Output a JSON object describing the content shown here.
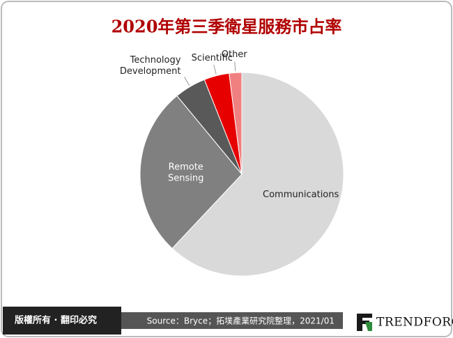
{
  "chart_data": {
    "type": "pie",
    "title": "2020年第三季衛星服務市占率",
    "categories": [
      "Communications",
      "Remote Sensing",
      "Technology Development",
      "Scientific",
      "Other"
    ],
    "values": [
      62,
      27,
      5,
      4,
      2
    ],
    "colors": [
      "#d9d9d9",
      "#808080",
      "#595959",
      "#e60000",
      "#f08080"
    ]
  },
  "footer": {
    "rights": "版權所有 · 翻印必究",
    "source": "Source：Bryce；拓墣產業研究院整理，2021/01",
    "logo": "TrendForce"
  }
}
